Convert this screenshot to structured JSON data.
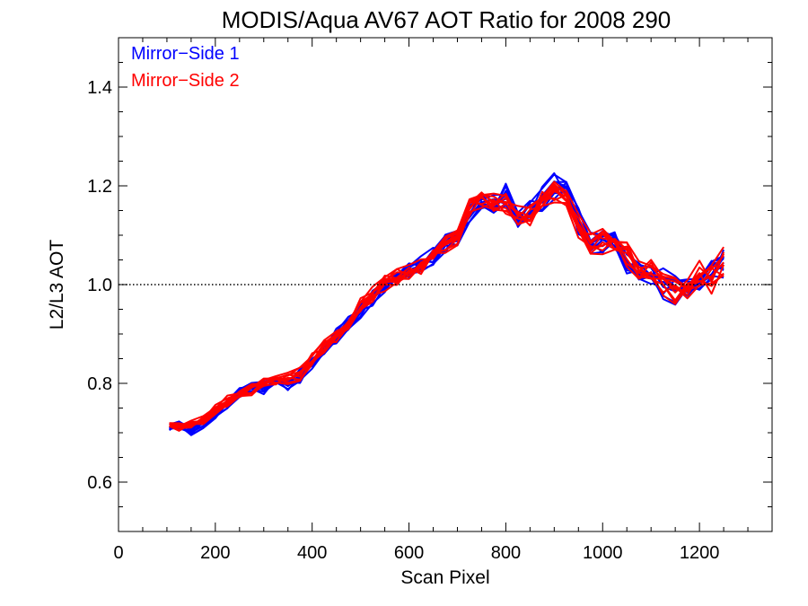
{
  "chart_data": {
    "type": "line",
    "title": "MODIS/Aqua AV67 AOT Ratio for 2008 290",
    "xlabel": "Scan Pixel",
    "ylabel": "L2/L3 AOT",
    "xlim": [
      0,
      1350
    ],
    "ylim": [
      0.5,
      1.5
    ],
    "xticks": [
      0,
      200,
      400,
      600,
      800,
      1000,
      1200
    ],
    "yticks": [
      0.6,
      0.8,
      1.0,
      1.2,
      1.4
    ],
    "xtick_labels": [
      "0",
      "200",
      "400",
      "600",
      "800",
      "1000",
      "1200"
    ],
    "ytick_labels": [
      "0.6",
      "0.8",
      "1.0",
      "1.2",
      "1.4"
    ],
    "reference_line": {
      "y": 1.0,
      "style": "dotted"
    },
    "legend": [
      {
        "label": "Mirror−Side 1",
        "color": "#0000ff"
      },
      {
        "label": "Mirror−Side 2",
        "color": "#ff0000"
      }
    ],
    "legend_placement": "top-left",
    "grid": false,
    "lines_per_mirror_side": 10,
    "x": [
      105,
      125,
      150,
      175,
      200,
      225,
      250,
      275,
      300,
      325,
      350,
      375,
      400,
      425,
      450,
      475,
      500,
      525,
      550,
      575,
      600,
      625,
      650,
      675,
      700,
      725,
      750,
      775,
      800,
      825,
      850,
      875,
      900,
      925,
      950,
      975,
      1000,
      1025,
      1050,
      1075,
      1100,
      1125,
      1150,
      1175,
      1200,
      1225,
      1250
    ],
    "series": [
      {
        "color": "#0000ff",
        "values": [
          0.71,
          0.715,
          0.705,
          0.72,
          0.74,
          0.76,
          0.78,
          0.79,
          0.79,
          0.81,
          0.8,
          0.815,
          0.84,
          0.87,
          0.895,
          0.92,
          0.95,
          0.975,
          1.0,
          1.02,
          1.03,
          1.045,
          1.06,
          1.08,
          1.1,
          1.15,
          1.17,
          1.16,
          1.18,
          1.13,
          1.15,
          1.17,
          1.2,
          1.19,
          1.13,
          1.08,
          1.085,
          1.095,
          1.05,
          1.03,
          1.02,
          1.0,
          0.99,
          0.985,
          1.01,
          1.025,
          1.045
        ]
      },
      {
        "color": "#ff0000",
        "values": [
          0.715,
          0.71,
          0.715,
          0.725,
          0.745,
          0.765,
          0.78,
          0.785,
          0.8,
          0.805,
          0.81,
          0.82,
          0.85,
          0.875,
          0.89,
          0.915,
          0.955,
          0.98,
          1.0,
          1.015,
          1.025,
          1.04,
          1.06,
          1.075,
          1.1,
          1.16,
          1.175,
          1.17,
          1.16,
          1.14,
          1.14,
          1.175,
          1.19,
          1.17,
          1.12,
          1.075,
          1.09,
          1.085,
          1.06,
          1.02,
          1.03,
          1.01,
          0.985,
          0.99,
          1.015,
          1.02,
          1.04
        ]
      }
    ]
  }
}
